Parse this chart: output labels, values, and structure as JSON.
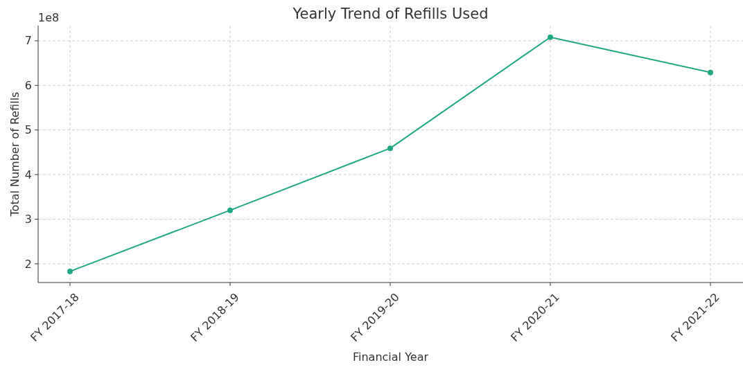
{
  "chart_data": {
    "type": "line",
    "title": "Yearly Trend of Refills Used",
    "xlabel": "Financial Year",
    "ylabel": "Total Number of Refills",
    "annotations": [
      "1e8"
    ],
    "categories": [
      "FY 2017-18",
      "FY 2018-19",
      "FY 2019-20",
      "FY 2020-21",
      "FY 2021-22"
    ],
    "series": [
      {
        "color": "#21a883",
        "values": [
          1.83,
          3.2,
          4.59,
          7.08,
          6.29
        ]
      }
    ],
    "ylim": [
      1.58,
      7.34
    ],
    "yticks": [
      2,
      3,
      4,
      5,
      6,
      7
    ],
    "grid": true,
    "marker": "circle",
    "line_style": "solid"
  }
}
